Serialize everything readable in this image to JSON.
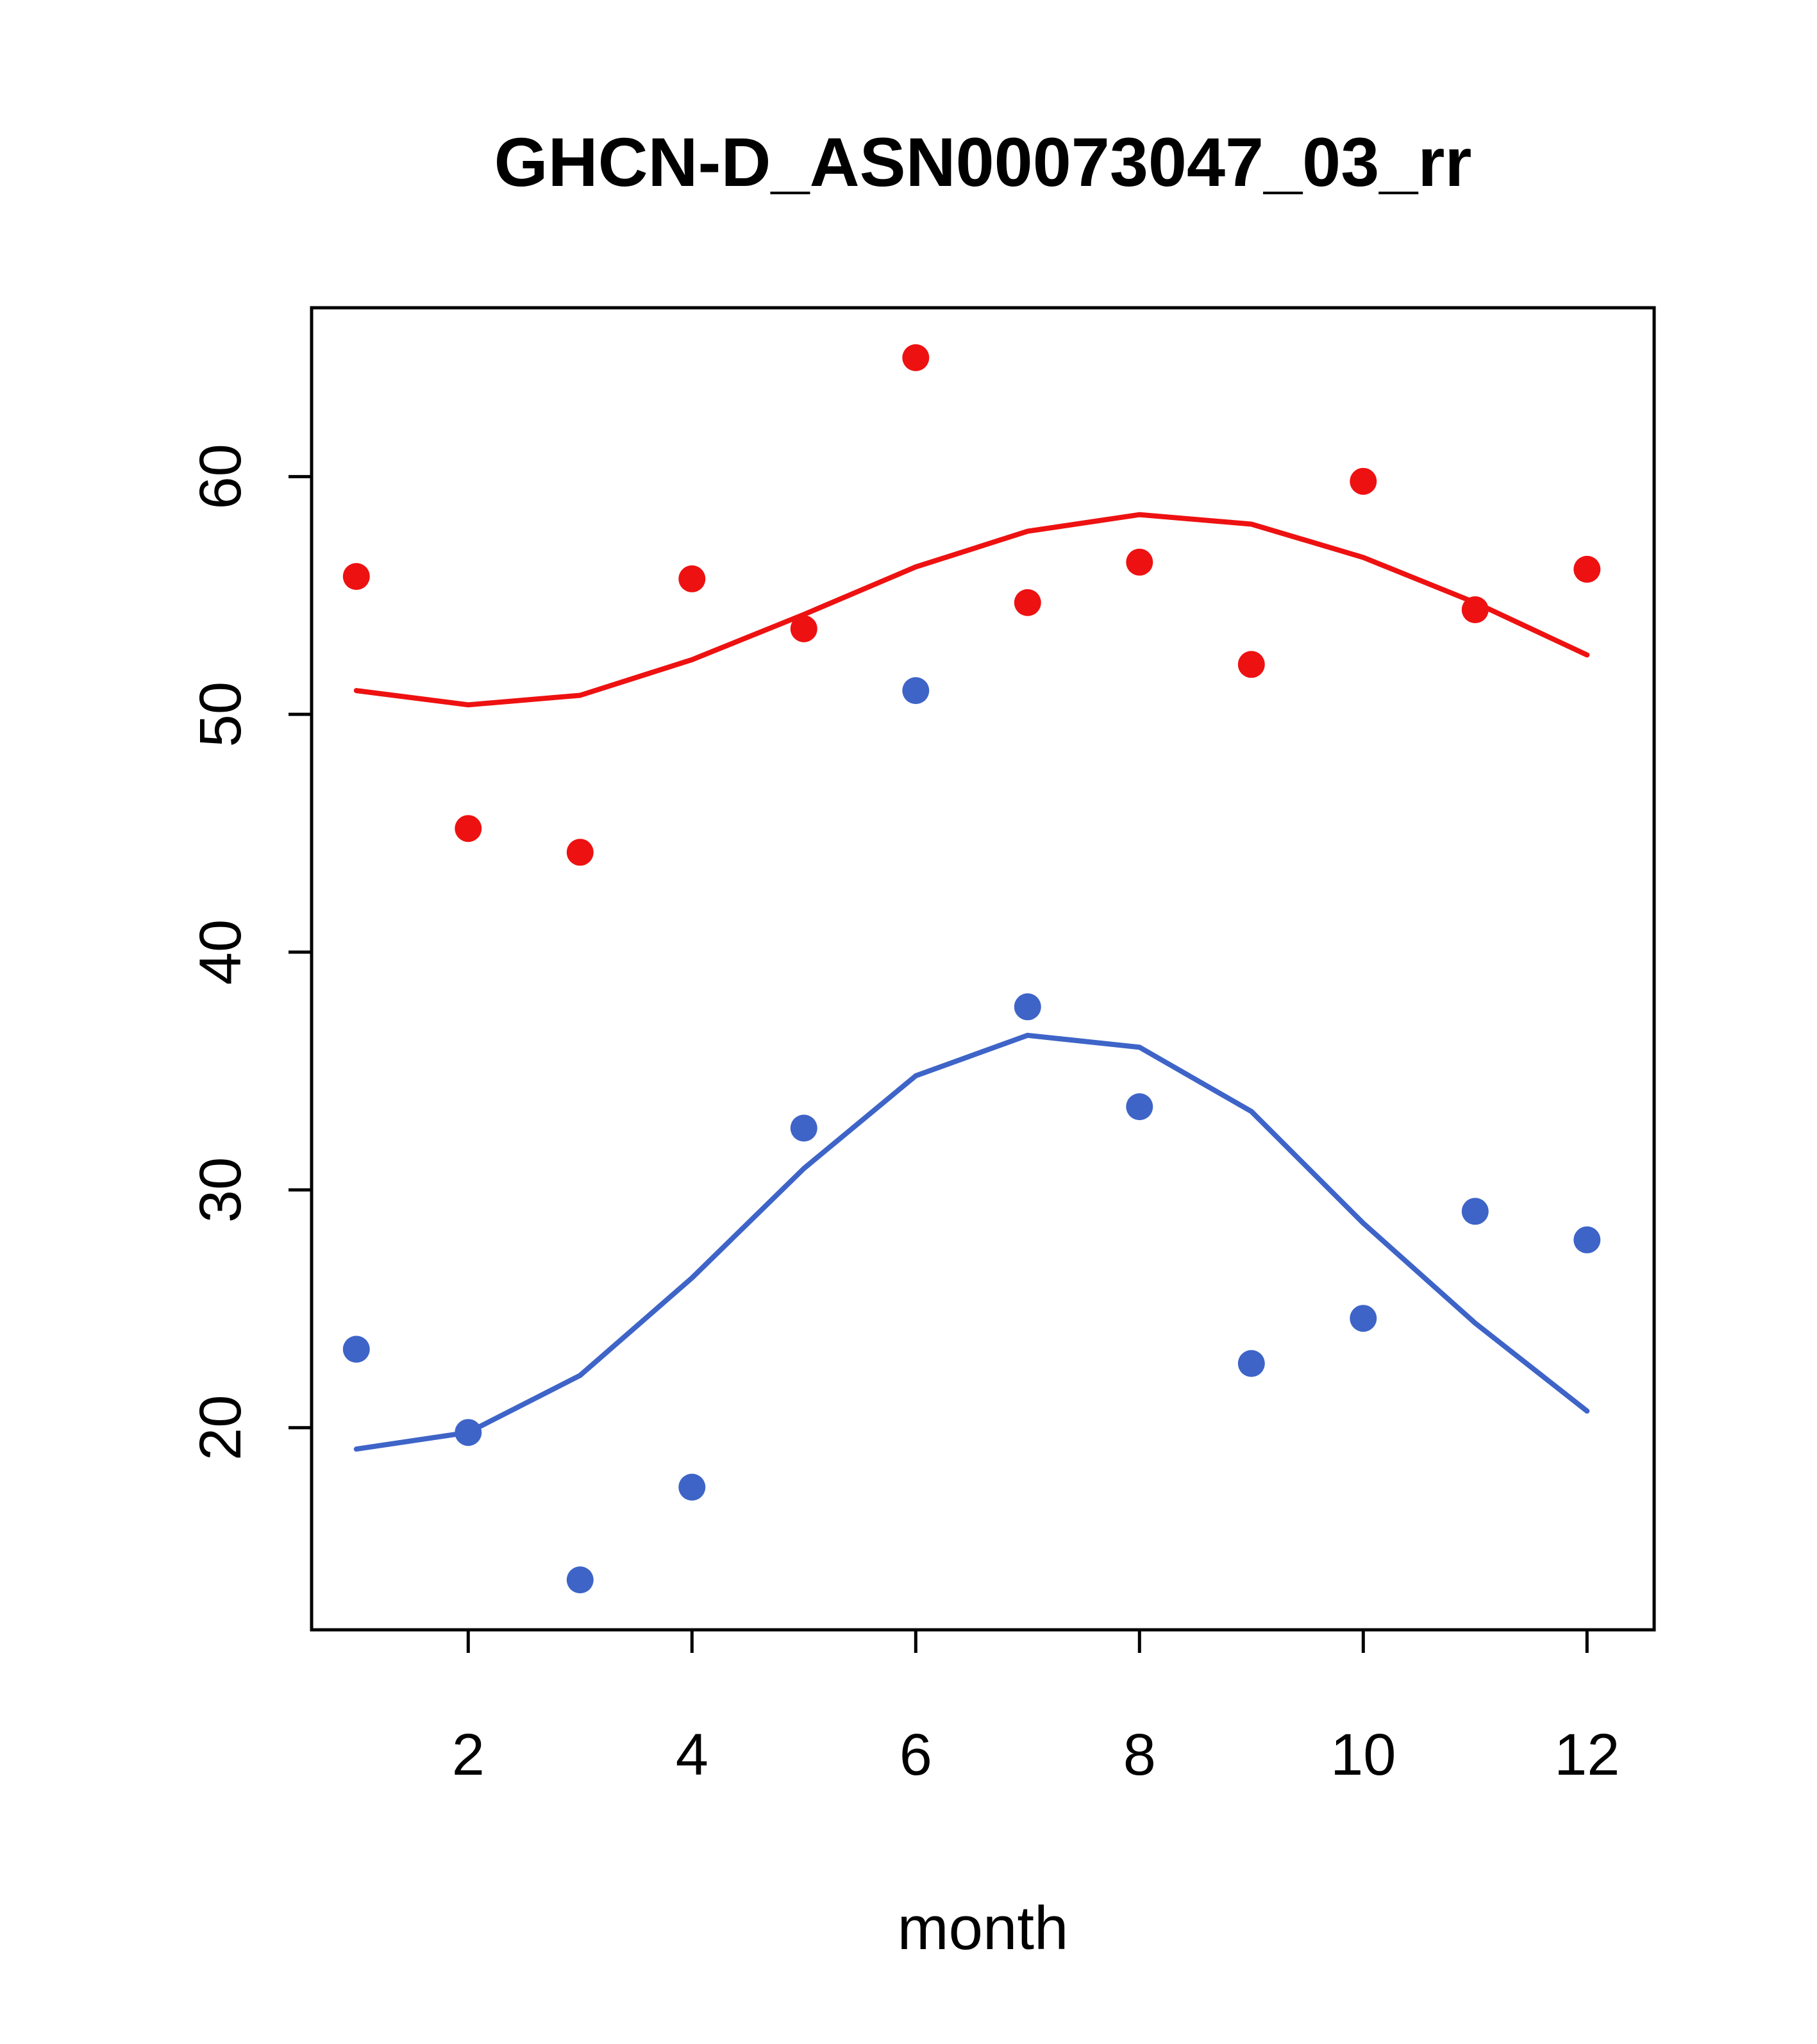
{
  "title": "GHCN-D_ASN00073047_03_rr",
  "chart_data": {
    "type": "scatter",
    "title": "GHCN-D_ASN00073047_03_rr",
    "xlabel": "month",
    "ylabel": "",
    "x_ticks": [
      2,
      4,
      6,
      8,
      10,
      12
    ],
    "y_ticks": [
      20,
      30,
      40,
      50,
      60
    ],
    "xlim": [
      0.6,
      12.6
    ],
    "ylim": [
      11.5,
      67.1
    ],
    "grid": false,
    "legend": "none",
    "colors": {
      "red": "#ee1111",
      "blue": "#3e64c8",
      "axis": "#000000",
      "background": "#ffffff"
    },
    "x": [
      1,
      2,
      3,
      4,
      5,
      6,
      7,
      8,
      9,
      10,
      11,
      12
    ],
    "series": [
      {
        "name": "red-points",
        "kind": "points",
        "color_key": "red",
        "values": [
          55.8,
          45.2,
          44.2,
          55.7,
          53.6,
          65.0,
          54.7,
          56.4,
          52.1,
          59.8,
          54.4,
          56.1
        ]
      },
      {
        "name": "blue-points",
        "kind": "points",
        "color_key": "blue",
        "values": [
          23.3,
          19.8,
          13.6,
          17.5,
          32.6,
          51.0,
          37.7,
          33.5,
          22.7,
          24.6,
          29.1,
          27.9
        ]
      },
      {
        "name": "red-smooth-line",
        "kind": "line",
        "color_key": "red",
        "values": [
          51.0,
          50.4,
          50.8,
          52.3,
          54.2,
          56.2,
          57.7,
          58.4,
          58.0,
          56.6,
          54.7,
          52.5
        ]
      },
      {
        "name": "blue-smooth-line",
        "kind": "line",
        "color_key": "blue",
        "values": [
          19.1,
          19.8,
          22.2,
          26.3,
          30.9,
          34.8,
          36.5,
          36.0,
          33.3,
          28.6,
          24.4,
          20.7
        ]
      }
    ]
  }
}
